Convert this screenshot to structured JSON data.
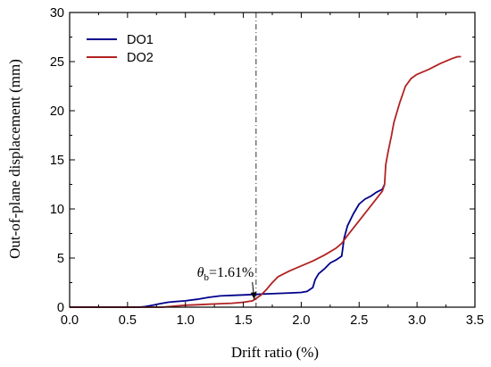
{
  "chart_data": {
    "type": "line",
    "xlabel": "Drift ratio (%)",
    "ylabel": "Out-of-plane displacement (mm)",
    "xlim": [
      0.0,
      3.5
    ],
    "ylim": [
      0,
      30
    ],
    "xticks": [
      "0.0",
      "0.5",
      "1.0",
      "1.5",
      "2.0",
      "2.5",
      "3.0",
      "3.5"
    ],
    "yticks": [
      "0",
      "5",
      "10",
      "15",
      "20",
      "25",
      "30"
    ],
    "grid": false,
    "legend_position": "top-left",
    "series": [
      {
        "name": "DO1",
        "color": "#00008b",
        "x": [
          0.0,
          0.6,
          0.65,
          0.72,
          0.78,
          0.85,
          0.9,
          1.0,
          1.1,
          1.2,
          1.3,
          1.4,
          1.5,
          1.6,
          1.7,
          1.8,
          1.9,
          2.0,
          2.05,
          2.1,
          2.12,
          2.15,
          2.2,
          2.25,
          2.3,
          2.35,
          2.37,
          2.4,
          2.45,
          2.5,
          2.55,
          2.6,
          2.65,
          2.7,
          2.72
        ],
        "y": [
          0.0,
          0.0,
          0.05,
          0.2,
          0.35,
          0.5,
          0.55,
          0.65,
          0.8,
          1.0,
          1.15,
          1.2,
          1.25,
          1.3,
          1.35,
          1.4,
          1.45,
          1.5,
          1.6,
          2.0,
          2.8,
          3.4,
          3.9,
          4.5,
          4.8,
          5.2,
          7.0,
          8.3,
          9.5,
          10.5,
          11.0,
          11.3,
          11.7,
          12.0,
          12.5
        ]
      },
      {
        "name": "DO2",
        "color": "#b22222",
        "x": [
          0.0,
          0.8,
          0.9,
          1.0,
          1.1,
          1.2,
          1.3,
          1.4,
          1.5,
          1.58,
          1.65,
          1.7,
          1.75,
          1.8,
          1.85,
          1.9,
          2.0,
          2.1,
          2.2,
          2.3,
          2.35,
          2.4,
          2.5,
          2.6,
          2.7,
          2.72,
          2.73,
          2.75,
          2.78,
          2.8,
          2.85,
          2.9,
          2.95,
          3.0,
          3.1,
          3.2,
          3.3,
          3.35,
          3.38
        ],
        "y": [
          0.0,
          0.0,
          0.1,
          0.2,
          0.25,
          0.3,
          0.35,
          0.4,
          0.5,
          0.65,
          1.2,
          1.8,
          2.5,
          3.1,
          3.4,
          3.7,
          4.2,
          4.7,
          5.3,
          6.0,
          6.5,
          7.3,
          8.8,
          10.3,
          11.8,
          12.5,
          14.5,
          15.8,
          17.5,
          18.8,
          20.8,
          22.5,
          23.3,
          23.7,
          24.2,
          24.8,
          25.3,
          25.5,
          25.5
        ]
      }
    ],
    "vline": {
      "x": 1.61,
      "style": "dash-dot"
    },
    "annotation": {
      "symbol": "θ",
      "subscript": "b",
      "value": "=1.61%",
      "point_x": 1.61,
      "point_y": 0.6,
      "text_x": 1.1,
      "text_y": 3.1
    }
  }
}
